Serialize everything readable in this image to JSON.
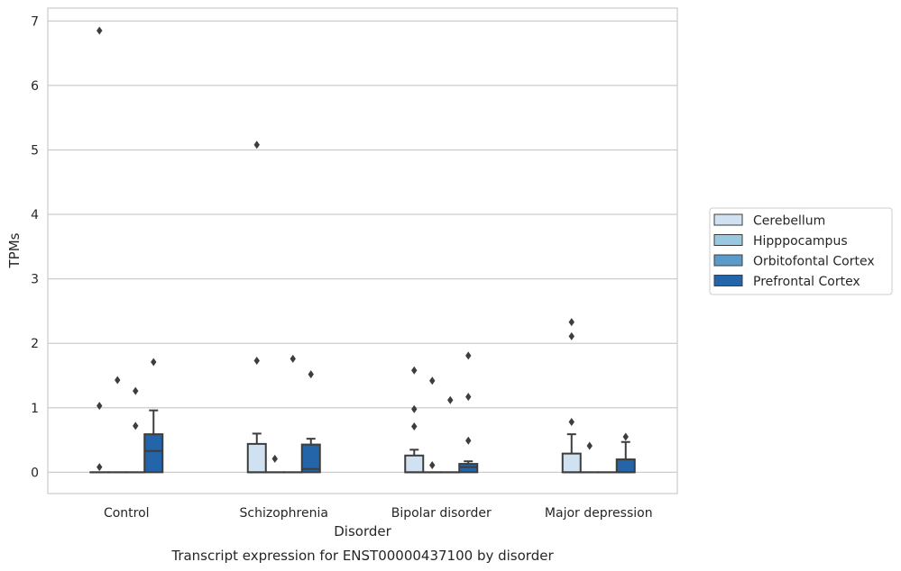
{
  "chart_data": {
    "type": "box",
    "title": "Transcript expression for ENST00000437100 by disorder",
    "xlabel": "Disorder",
    "ylabel": "TPMs",
    "ylim": [
      -0.33,
      7.2
    ],
    "yticks": [
      0,
      1,
      2,
      3,
      4,
      5,
      6,
      7
    ],
    "grid": true,
    "legend_position": "right",
    "categories": [
      "Control",
      "Schizophrenia",
      "Bipolar disorder",
      "Major depression"
    ],
    "series": [
      {
        "name": "Cerebellum",
        "color": "#d0e1f2",
        "boxes": [
          {
            "q1": 0,
            "median": 0,
            "q3": 0,
            "whisker_low": 0,
            "whisker_high": 0,
            "outliers": [
              6.85,
              1.03,
              0.08
            ]
          },
          {
            "q1": 0,
            "median": 0,
            "q3": 0.44,
            "whisker_low": 0,
            "whisker_high": 0.6,
            "outliers": [
              5.08,
              1.73
            ]
          },
          {
            "q1": 0,
            "median": 0,
            "q3": 0.26,
            "whisker_low": 0,
            "whisker_high": 0.35,
            "outliers": [
              1.58,
              0.98,
              0.71
            ]
          },
          {
            "q1": 0,
            "median": 0,
            "q3": 0.29,
            "whisker_low": 0,
            "whisker_high": 0.59,
            "outliers": [
              2.33,
              2.11,
              0.78
            ]
          }
        ]
      },
      {
        "name": "Hipppocampus",
        "color": "#9ac8e0",
        "boxes": [
          {
            "q1": 0,
            "median": 0,
            "q3": 0,
            "whisker_low": 0,
            "whisker_high": 0,
            "outliers": [
              1.43
            ]
          },
          {
            "q1": 0,
            "median": 0,
            "q3": 0,
            "whisker_low": 0,
            "whisker_high": 0,
            "outliers": [
              0.21
            ]
          },
          {
            "q1": 0,
            "median": 0,
            "q3": 0,
            "whisker_low": 0,
            "whisker_high": 0,
            "outliers": [
              1.42,
              0.11
            ]
          },
          {
            "q1": 0,
            "median": 0,
            "q3": 0,
            "whisker_low": 0,
            "whisker_high": 0,
            "outliers": [
              0.41
            ]
          }
        ]
      },
      {
        "name": "Orbitofontal Cortex",
        "color": "#5a9bc9",
        "boxes": [
          {
            "q1": 0,
            "median": 0,
            "q3": 0,
            "whisker_low": 0,
            "whisker_high": 0,
            "outliers": [
              1.26,
              0.72
            ]
          },
          {
            "q1": 0,
            "median": 0,
            "q3": 0,
            "whisker_low": 0,
            "whisker_high": 0,
            "outliers": [
              1.76
            ]
          },
          {
            "q1": 0,
            "median": 0,
            "q3": 0,
            "whisker_low": 0,
            "whisker_high": 0,
            "outliers": [
              1.12
            ]
          },
          {
            "q1": 0,
            "median": 0,
            "q3": 0,
            "whisker_low": 0,
            "whisker_high": 0,
            "outliers": []
          }
        ]
      },
      {
        "name": "Prefrontal Cortex",
        "color": "#2464a8",
        "boxes": [
          {
            "q1": 0,
            "median": 0.33,
            "q3": 0.59,
            "whisker_low": 0,
            "whisker_high": 0.96,
            "outliers": [
              1.71
            ]
          },
          {
            "q1": 0,
            "median": 0.05,
            "q3": 0.43,
            "whisker_low": 0,
            "whisker_high": 0.52,
            "outliers": [
              1.52
            ]
          },
          {
            "q1": 0,
            "median": 0.08,
            "q3": 0.13,
            "whisker_low": 0,
            "whisker_high": 0.17,
            "outliers": [
              1.81,
              1.17,
              0.49
            ]
          },
          {
            "q1": 0,
            "median": 0,
            "q3": 0.2,
            "whisker_low": 0,
            "whisker_high": 0.47,
            "outliers": [
              0.55
            ]
          }
        ]
      }
    ]
  }
}
